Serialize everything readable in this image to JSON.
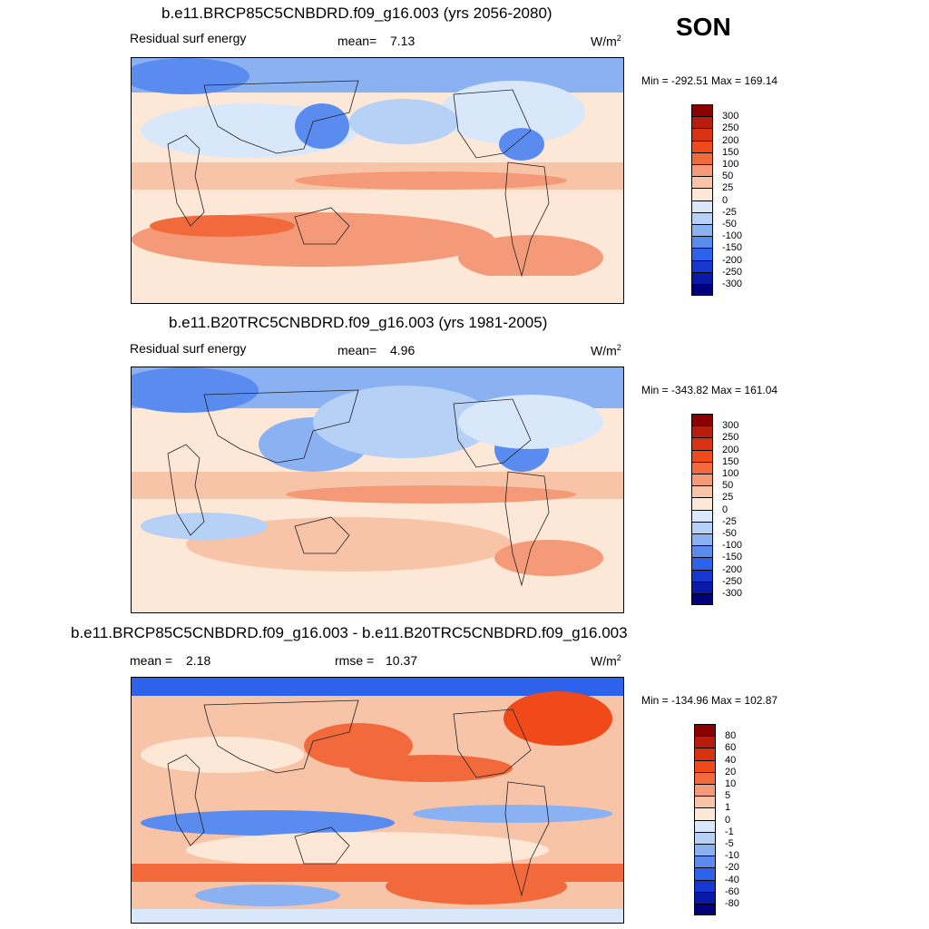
{
  "season": "SON",
  "panels": [
    {
      "title": "b.e11.BRCP85C5CNBDRD.f09_g16.003 (yrs 2056-2080)",
      "left_label": "Residual surf energy",
      "mean_label": "mean=",
      "mean_value": "7.13",
      "units": "W/m",
      "units_sup": "2",
      "minmax": "Min = -292.51 Max = 169.14",
      "scale": "abs"
    },
    {
      "title": "b.e11.B20TRC5CNBDRD.f09_g16.003 (yrs 1981-2005)",
      "left_label": "Residual surf energy",
      "mean_label": "mean=",
      "mean_value": "4.96",
      "units": "W/m",
      "units_sup": "2",
      "minmax": "Min = -343.82 Max = 161.04",
      "scale": "abs"
    },
    {
      "title": "b.e11.BRCP85C5CNBDRD.f09_g16.003 - b.e11.B20TRC5CNBDRD.f09_g16.003",
      "mean_label": "mean =",
      "mean_value": "2.18",
      "rmse_label": "rmse =",
      "rmse_value": "10.37",
      "units": "W/m",
      "units_sup": "2",
      "minmax": "Min = -134.96 Max = 102.87",
      "scale": "diff"
    }
  ],
  "colorbars": {
    "abs": {
      "labels": [
        "300",
        "250",
        "200",
        "150",
        "100",
        "50",
        "25",
        "0",
        "-25",
        "-50",
        "-100",
        "-150",
        "-200",
        "-250",
        "-300"
      ],
      "colors": [
        "#8b0000",
        "#b71c0c",
        "#d93212",
        "#f04a1a",
        "#f26a3c",
        "#f59a78",
        "#f8c4a8",
        "#fde8d8",
        "#d8e8fa",
        "#b6d0f6",
        "#8ab2f2",
        "#5a8cf0",
        "#2d62ec",
        "#1638d0",
        "#0a1aa8",
        "#00007e"
      ]
    },
    "diff": {
      "labels": [
        "80",
        "60",
        "40",
        "20",
        "10",
        "5",
        "1",
        "0",
        "-1",
        "-5",
        "-10",
        "-20",
        "-40",
        "-60",
        "-80"
      ],
      "colors": [
        "#8b0000",
        "#b71c0c",
        "#d93212",
        "#f04a1a",
        "#f26a3c",
        "#f59a78",
        "#f8c4a8",
        "#fde8d8",
        "#d8e8fa",
        "#b6d0f6",
        "#8ab2f2",
        "#5a8cf0",
        "#2d62ec",
        "#1638d0",
        "#0a1aa8",
        "#00007e"
      ]
    }
  }
}
